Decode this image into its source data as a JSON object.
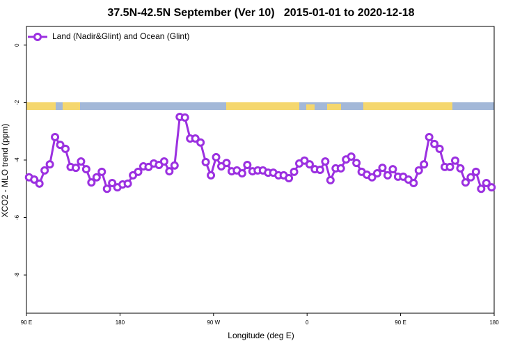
{
  "chart_data": {
    "type": "line",
    "title": "37.5N-42.5N September (Ver 10)   2015-01-01 to 2020-12-18",
    "x_label": "Longitude (deg E)",
    "y_label": "XCO2 - MLO trend (ppm)",
    "xlim": [
      90,
      540
    ],
    "xticks": [
      {
        "value": 90,
        "label": "90 E"
      },
      {
        "value": 180,
        "label": "180"
      },
      {
        "value": 270,
        "label": "90 W"
      },
      {
        "value": 360,
        "label": "0"
      },
      {
        "value": 450,
        "label": "90 E"
      },
      {
        "value": 540,
        "label": "180"
      }
    ],
    "ylim": [
      -9.33,
      0.65
    ],
    "yticks": [
      0,
      -2,
      -4,
      -6,
      -8
    ],
    "legend": "top-left",
    "x": [
      92.5,
      97.5,
      102.5,
      107.5,
      112.5,
      117.5,
      122.5,
      127.5,
      132.5,
      137.5,
      142.5,
      147.5,
      152.5,
      157.5,
      162.5,
      167.5,
      172.5,
      177.5,
      182.5,
      187.5,
      192.5,
      197.5,
      202.5,
      207.5,
      212.5,
      217.5,
      222.5,
      227.5,
      232.5,
      237.5,
      242.5,
      247.5,
      252.5,
      257.5,
      262.5,
      267.5,
      272.5,
      277.5,
      282.5,
      287.5,
      292.5,
      297.5,
      302.5,
      307.5,
      312.5,
      317.5,
      322.5,
      327.5,
      332.5,
      337.5,
      342.5,
      347.5,
      352.5,
      357.5,
      362.5,
      367.5,
      372.5,
      377.5,
      382.5,
      387.5,
      392.5,
      397.5,
      402.5,
      407.5,
      412.5,
      417.5,
      422.5,
      427.5,
      432.5,
      437.5,
      442.5,
      447.5,
      452.5,
      457.5,
      462.5,
      467.5,
      472.5,
      477.5,
      482.5,
      487.5,
      492.5,
      497.5,
      502.5,
      507.5,
      512.5,
      517.5,
      522.5,
      527.5,
      532.5,
      537.5
    ],
    "series": [
      {
        "name": "Land (Nadir&Glint) and Ocean (Glint)",
        "color": "#9b30e0",
        "values": [
          -4.6,
          -4.68,
          -4.82,
          -4.36,
          -4.15,
          -3.2,
          -3.47,
          -3.61,
          -4.24,
          -4.27,
          -4.05,
          -4.32,
          -4.78,
          -4.6,
          -4.41,
          -5.0,
          -4.8,
          -4.95,
          -4.85,
          -4.82,
          -4.53,
          -4.41,
          -4.22,
          -4.24,
          -4.12,
          -4.17,
          -4.05,
          -4.39,
          -4.19,
          -2.5,
          -2.52,
          -3.25,
          -3.25,
          -3.39,
          -4.07,
          -4.53,
          -3.9,
          -4.22,
          -4.1,
          -4.39,
          -4.36,
          -4.46,
          -4.17,
          -4.39,
          -4.36,
          -4.36,
          -4.44,
          -4.44,
          -4.53,
          -4.53,
          -4.63,
          -4.41,
          -4.12,
          -4.02,
          -4.15,
          -4.32,
          -4.34,
          -4.05,
          -4.7,
          -4.29,
          -4.29,
          -3.98,
          -3.88,
          -4.1,
          -4.41,
          -4.51,
          -4.6,
          -4.46,
          -4.27,
          -4.53,
          -4.32,
          -4.58,
          -4.58,
          -4.68,
          -4.8,
          -4.36,
          -4.15,
          -3.2,
          -3.44,
          -3.61,
          -4.24,
          -4.24,
          -4.02,
          -4.29,
          -4.78,
          -4.6,
          -4.41,
          -5.0,
          -4.8,
          -4.95
        ]
      }
    ]
  }
}
